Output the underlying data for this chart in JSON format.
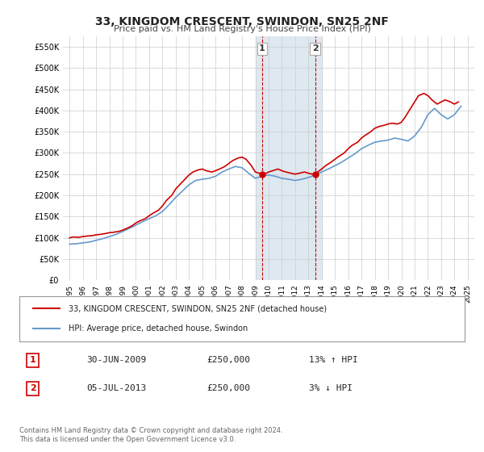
{
  "title": "33, KINGDOM CRESCENT, SWINDON, SN25 2NF",
  "subtitle": "Price paid vs. HM Land Registry's House Price Index (HPI)",
  "ylabel_ticks": [
    "£0",
    "£50K",
    "£100K",
    "£150K",
    "£200K",
    "£250K",
    "£300K",
    "£350K",
    "£400K",
    "£450K",
    "£500K",
    "£550K"
  ],
  "ytick_vals": [
    0,
    50000,
    100000,
    150000,
    200000,
    250000,
    300000,
    350000,
    400000,
    450000,
    500000,
    550000
  ],
  "ymax": 575000,
  "xmin": 1994.5,
  "xmax": 2025.5,
  "background_color": "#ffffff",
  "grid_color": "#cccccc",
  "hpi_color": "#6699cc",
  "price_color": "#cc0000",
  "shade_color": "#dde8f0",
  "marker1_x": 2009.5,
  "marker2_x": 2013.5,
  "shade_x1": 2009.0,
  "shade_x2": 2014.0,
  "legend_label1": "33, KINGDOM CRESCENT, SWINDON, SN25 2NF (detached house)",
  "legend_label2": "HPI: Average price, detached house, Swindon",
  "annotation1_label": "1",
  "annotation2_label": "2",
  "table_row1": [
    "1",
    "30-JUN-2009",
    "£250,000",
    "13% ↑ HPI"
  ],
  "table_row2": [
    "2",
    "05-JUL-2013",
    "£250,000",
    "3% ↓ HPI"
  ],
  "footer": "Contains HM Land Registry data © Crown copyright and database right 2024.\nThis data is licensed under the Open Government Licence v3.0.",
  "hpi_x": [
    1995,
    1995.5,
    1996,
    1996.5,
    1997,
    1997.5,
    1998,
    1998.5,
    1999,
    1999.5,
    2000,
    2000.5,
    2001,
    2001.5,
    2002,
    2002.5,
    2003,
    2003.5,
    2004,
    2004.5,
    2005,
    2005.5,
    2006,
    2006.5,
    2007,
    2007.5,
    2008,
    2008.5,
    2009,
    2009.5,
    2010,
    2010.5,
    2011,
    2011.5,
    2012,
    2012.5,
    2013,
    2013.5,
    2014,
    2014.5,
    2015,
    2015.5,
    2016,
    2016.5,
    2017,
    2017.5,
    2018,
    2018.5,
    2019,
    2019.5,
    2020,
    2020.5,
    2021,
    2021.5,
    2022,
    2022.5,
    2023,
    2023.5,
    2024,
    2024.5
  ],
  "hpi_y": [
    85000,
    86000,
    88000,
    90000,
    94000,
    98000,
    103000,
    108000,
    115000,
    122000,
    130000,
    138000,
    145000,
    152000,
    162000,
    178000,
    195000,
    210000,
    225000,
    235000,
    238000,
    240000,
    245000,
    255000,
    262000,
    268000,
    265000,
    252000,
    240000,
    245000,
    248000,
    245000,
    240000,
    238000,
    235000,
    238000,
    242000,
    248000,
    255000,
    262000,
    270000,
    278000,
    288000,
    298000,
    310000,
    318000,
    325000,
    328000,
    330000,
    335000,
    332000,
    328000,
    340000,
    360000,
    390000,
    405000,
    390000,
    380000,
    390000,
    410000
  ],
  "price_x": [
    1995,
    1995.3,
    1995.7,
    1996,
    1996.3,
    1996.7,
    1997,
    1997.3,
    1997.7,
    1998,
    1998.3,
    1998.7,
    1999,
    1999.3,
    1999.7,
    2000,
    2000.3,
    2000.7,
    2001,
    2001.3,
    2001.7,
    2002,
    2002.3,
    2002.7,
    2003,
    2003.3,
    2003.7,
    2004,
    2004.3,
    2004.7,
    2005,
    2005.3,
    2005.7,
    2006,
    2006.3,
    2006.7,
    2007,
    2007.3,
    2007.7,
    2008,
    2008.3,
    2008.7,
    2009,
    2009.3,
    2009.7,
    2010,
    2010.3,
    2010.7,
    2011,
    2011.3,
    2011.7,
    2012,
    2012.3,
    2012.7,
    2013,
    2013.3,
    2013.7,
    2014,
    2014.3,
    2014.7,
    2015,
    2015.3,
    2015.7,
    2016,
    2016.3,
    2016.7,
    2017,
    2017.3,
    2017.7,
    2018,
    2018.3,
    2018.7,
    2019,
    2019.3,
    2019.7,
    2020,
    2020.3,
    2020.7,
    2021,
    2021.3,
    2021.7,
    2022,
    2022.3,
    2022.7,
    2023,
    2023.3,
    2023.7,
    2024,
    2024.3
  ],
  "price_y": [
    100000,
    102000,
    101000,
    103000,
    104000,
    105000,
    107000,
    108000,
    110000,
    112000,
    113000,
    115000,
    118000,
    122000,
    128000,
    135000,
    140000,
    145000,
    152000,
    158000,
    165000,
    175000,
    188000,
    200000,
    215000,
    225000,
    238000,
    248000,
    255000,
    260000,
    262000,
    258000,
    255000,
    258000,
    262000,
    268000,
    275000,
    282000,
    288000,
    290000,
    285000,
    270000,
    255000,
    252000,
    250000,
    255000,
    258000,
    262000,
    258000,
    255000,
    252000,
    250000,
    252000,
    255000,
    252000,
    250000,
    255000,
    262000,
    270000,
    278000,
    285000,
    292000,
    300000,
    310000,
    318000,
    325000,
    335000,
    342000,
    350000,
    358000,
    362000,
    365000,
    368000,
    370000,
    368000,
    372000,
    385000,
    405000,
    420000,
    435000,
    440000,
    435000,
    425000,
    415000,
    420000,
    425000,
    420000,
    415000,
    420000
  ]
}
